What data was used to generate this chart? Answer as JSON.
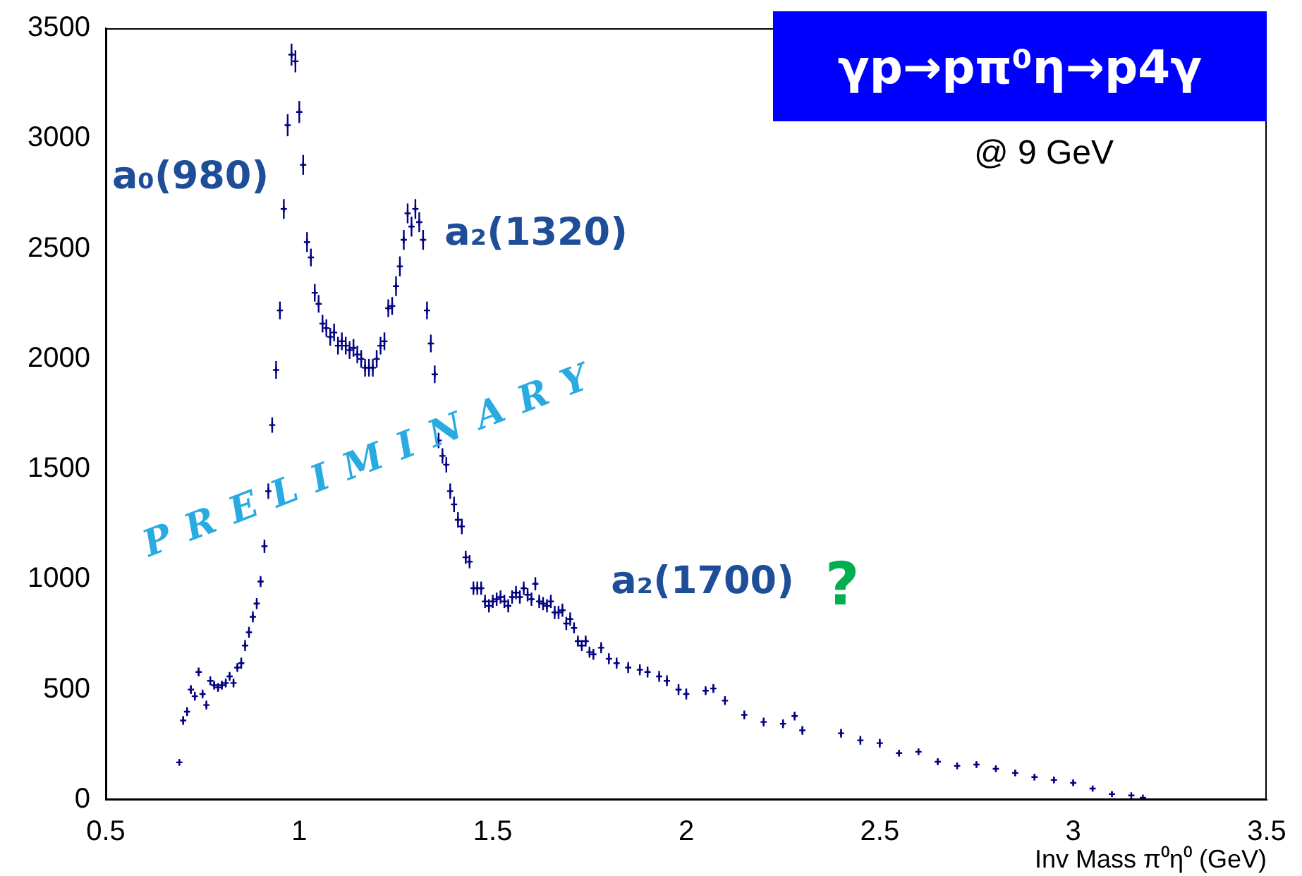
{
  "chart_data": {
    "type": "scatter",
    "title": "γp→pπ⁰η→p4γ",
    "subtitle": "@ 9 GeV",
    "xlabel": "Inv Mass π⁰η⁰ (GeV)",
    "annotations": [
      "a₀(980)",
      "a₂(1320)",
      "a₂(1700)",
      "?",
      "PRELIMINARY"
    ],
    "xlim": [
      0.5,
      3.5
    ],
    "xticks": [
      0.5,
      1,
      1.5,
      2,
      2.5,
      3,
      3.5
    ],
    "ylim": [
      0,
      3500
    ],
    "yticks": [
      0,
      500,
      1000,
      1500,
      2000,
      2500,
      3000,
      3500
    ],
    "grid": false,
    "legend": false,
    "marker": "cross",
    "series": [
      {
        "color": "#000080",
        "x": [
          0.69,
          0.7,
          0.71,
          0.72,
          0.73,
          0.74,
          0.75,
          0.76,
          0.77,
          0.78,
          0.79,
          0.8,
          0.81,
          0.82,
          0.83,
          0.84,
          0.85,
          0.86,
          0.87,
          0.88,
          0.89,
          0.9,
          0.91,
          0.92,
          0.93,
          0.94,
          0.95,
          0.96,
          0.97,
          0.98,
          0.99,
          1.0,
          1.01,
          1.02,
          1.03,
          1.04,
          1.05,
          1.06,
          1.07,
          1.08,
          1.09,
          1.1,
          1.11,
          1.12,
          1.13,
          1.14,
          1.15,
          1.16,
          1.17,
          1.18,
          1.19,
          1.2,
          1.21,
          1.22,
          1.23,
          1.24,
          1.25,
          1.26,
          1.27,
          1.28,
          1.29,
          1.3,
          1.31,
          1.32,
          1.33,
          1.34,
          1.35,
          1.36,
          1.37,
          1.38,
          1.39,
          1.4,
          1.41,
          1.42,
          1.43,
          1.44,
          1.45,
          1.46,
          1.47,
          1.48,
          1.49,
          1.5,
          1.51,
          1.52,
          1.53,
          1.54,
          1.55,
          1.56,
          1.57,
          1.58,
          1.59,
          1.6,
          1.61,
          1.62,
          1.63,
          1.64,
          1.65,
          1.66,
          1.67,
          1.68,
          1.69,
          1.7,
          1.71,
          1.72,
          1.73,
          1.74,
          1.75,
          1.76,
          1.78,
          1.8,
          1.82,
          1.85,
          1.88,
          1.9,
          1.93,
          1.95,
          1.98,
          2.0,
          2.05,
          2.07,
          2.1,
          2.15,
          2.2,
          2.25,
          2.28,
          2.3,
          2.4,
          2.45,
          2.5,
          2.55,
          2.6,
          2.65,
          2.7,
          2.75,
          2.8,
          2.85,
          2.9,
          2.95,
          3.0,
          3.05,
          3.1,
          3.15,
          3.18
        ],
        "values": [
          170,
          360,
          400,
          500,
          470,
          580,
          480,
          430,
          540,
          520,
          510,
          520,
          530,
          560,
          530,
          600,
          620,
          700,
          760,
          830,
          890,
          990,
          1150,
          1400,
          1700,
          1950,
          2220,
          2680,
          3060,
          3380,
          3350,
          3120,
          2880,
          2530,
          2460,
          2300,
          2250,
          2160,
          2140,
          2100,
          2120,
          2060,
          2080,
          2060,
          2040,
          2050,
          2020,
          2000,
          1960,
          1960,
          1960,
          2000,
          2060,
          2080,
          2230,
          2240,
          2330,
          2420,
          2540,
          2660,
          2600,
          2680,
          2620,
          2540,
          2220,
          2070,
          1930,
          1630,
          1560,
          1520,
          1400,
          1340,
          1270,
          1240,
          1100,
          1080,
          960,
          960,
          960,
          900,
          880,
          900,
          910,
          920,
          900,
          880,
          920,
          940,
          920,
          960,
          930,
          910,
          980,
          900,
          890,
          880,
          900,
          850,
          850,
          860,
          800,
          820,
          780,
          720,
          700,
          720,
          670,
          660,
          690,
          640,
          620,
          600,
          590,
          580,
          560,
          540,
          500,
          480,
          495,
          505,
          450,
          385,
          353,
          345,
          380,
          315,
          302,
          270,
          257,
          212,
          218,
          173,
          154,
          160,
          141,
          122,
          103,
          90,
          77,
          51,
          26,
          20,
          10
        ],
        "errors": [
          15,
          20,
          20,
          20,
          20,
          20,
          20,
          20,
          20,
          20,
          20,
          20,
          20,
          20,
          20,
          20,
          25,
          25,
          25,
          25,
          25,
          25,
          30,
          35,
          35,
          40,
          40,
          45,
          50,
          50,
          50,
          50,
          45,
          45,
          40,
          40,
          40,
          40,
          40,
          40,
          40,
          40,
          40,
          40,
          40,
          40,
          40,
          40,
          40,
          40,
          40,
          40,
          40,
          40,
          40,
          40,
          45,
          45,
          45,
          45,
          45,
          45,
          45,
          45,
          40,
          40,
          40,
          35,
          35,
          35,
          35,
          35,
          35,
          35,
          30,
          30,
          30,
          30,
          30,
          30,
          30,
          30,
          30,
          30,
          30,
          30,
          30,
          30,
          30,
          30,
          30,
          30,
          30,
          30,
          30,
          30,
          30,
          30,
          30,
          30,
          30,
          30,
          25,
          25,
          25,
          25,
          25,
          25,
          25,
          25,
          25,
          25,
          25,
          25,
          25,
          25,
          25,
          25,
          20,
          20,
          20,
          20,
          20,
          20,
          20,
          20,
          20,
          20,
          20,
          15,
          15,
          15,
          15,
          15,
          15,
          15,
          15,
          15,
          15,
          10,
          10,
          null,
          null
        ]
      }
    ]
  }
}
